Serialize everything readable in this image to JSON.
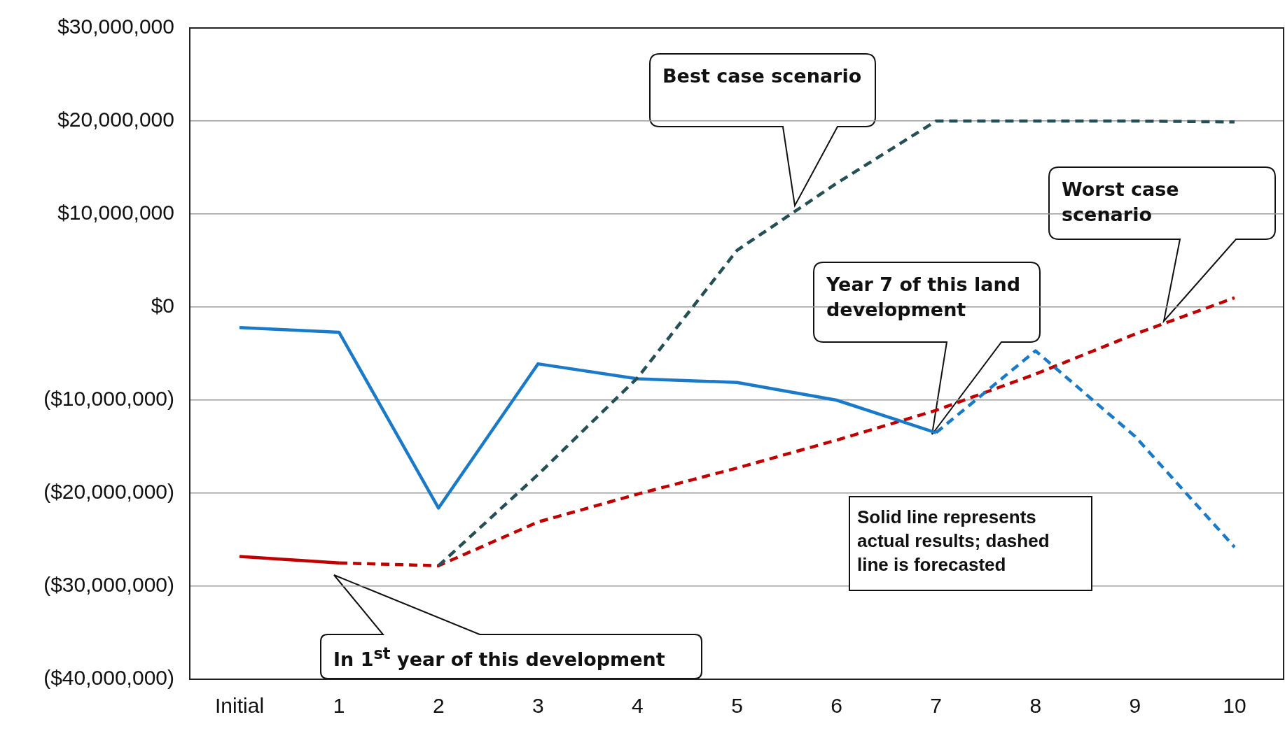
{
  "chart_data": {
    "type": "line",
    "categories": [
      "Initial",
      "1",
      "2",
      "3",
      "4",
      "5",
      "6",
      "7",
      "8",
      "9",
      "10"
    ],
    "series": [
      {
        "color": "#254f55",
        "line_style": "dashed",
        "values": [
          null,
          null,
          -27800000,
          -18000000,
          -7600000,
          6100000,
          13300000,
          20000000,
          20000000,
          20000000,
          19900000
        ]
      },
      {
        "color": "#1a7ac8",
        "line_style": "solid",
        "values": [
          -2200000,
          -2700000,
          -21600000,
          -6100000,
          -7700000,
          -8100000,
          -10000000,
          -13500000,
          null,
          null,
          null
        ]
      },
      {
        "color": "#1a7ac8",
        "line_style": "dashed",
        "values": [
          null,
          null,
          null,
          null,
          null,
          null,
          null,
          -13500000,
          -4700000,
          -13900000,
          -25800000
        ]
      },
      {
        "color": "#c00000",
        "line_style": "solid",
        "values": [
          -26800000,
          -27500000,
          null,
          null,
          null,
          null,
          null,
          null,
          null,
          null,
          null
        ]
      },
      {
        "color": "#c00000",
        "line_style": "dashed",
        "values": [
          null,
          -27500000,
          -27800000,
          -23100000,
          -20100000,
          -17300000,
          -14300000,
          -11100000,
          -7200000,
          -2900000,
          1000000
        ]
      }
    ],
    "ylim": [
      -40000000,
      30000000
    ],
    "yticks": [
      {
        "value": -40000000,
        "label": "($40,000,000)"
      },
      {
        "value": -30000000,
        "label": "($30,000,000)"
      },
      {
        "value": -20000000,
        "label": "($20,000,000)"
      },
      {
        "value": -10000000,
        "label": "($10,000,000)"
      },
      {
        "value": 0,
        "label": "$0"
      },
      {
        "value": 10000000,
        "label": "$10,000,000"
      },
      {
        "value": 20000000,
        "label": "$20,000,000"
      },
      {
        "value": 30000000,
        "label": "$30,000,000"
      }
    ],
    "grid": "y",
    "legend": false,
    "marker": "none",
    "annotations": [
      "Best case scenario",
      "Worst case scenario",
      "Year 7 of this land development",
      "In 1$^{st}$ year of this development",
      "Solid line represents actual results; dashed line is forecasted"
    ]
  }
}
